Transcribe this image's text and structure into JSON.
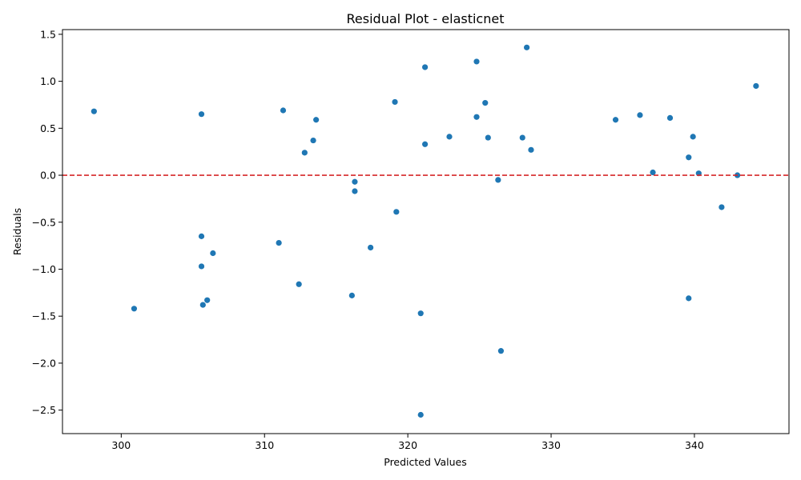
{
  "chart_data": {
    "type": "scatter",
    "title": "Residual Plot - elasticnet",
    "xlabel": "Predicted Values",
    "ylabel": "Residuals",
    "xlim": [
      295.9,
      346.6
    ],
    "ylim": [
      -2.75,
      1.55
    ],
    "xticks": [
      300,
      310,
      320,
      330,
      340
    ],
    "xtick_labels": [
      "300",
      "310",
      "320",
      "330",
      "340"
    ],
    "yticks": [
      1.5,
      1.0,
      0.5,
      0.0,
      -0.5,
      -1.0,
      -1.5,
      -2.0,
      -2.5
    ],
    "ytick_labels": [
      "1.5",
      "1.0",
      "0.5",
      "0.0",
      "−0.5",
      "−1.0",
      "−1.5",
      "−2.0",
      "−2.5"
    ],
    "reference_line": {
      "y": 0,
      "style": "dashed",
      "color": "#d62728"
    },
    "marker_color": "#1f77b4",
    "grid": false,
    "points": [
      {
        "x": 298.1,
        "y": 0.68
      },
      {
        "x": 300.9,
        "y": -1.42
      },
      {
        "x": 305.6,
        "y": 0.65
      },
      {
        "x": 305.6,
        "y": -0.65
      },
      {
        "x": 305.6,
        "y": -0.97
      },
      {
        "x": 305.7,
        "y": -1.38
      },
      {
        "x": 306.0,
        "y": -1.33
      },
      {
        "x": 306.4,
        "y": -0.83
      },
      {
        "x": 311.0,
        "y": -0.72
      },
      {
        "x": 311.3,
        "y": 0.69
      },
      {
        "x": 312.4,
        "y": -1.16
      },
      {
        "x": 312.8,
        "y": 0.24
      },
      {
        "x": 313.4,
        "y": 0.37
      },
      {
        "x": 313.6,
        "y": 0.59
      },
      {
        "x": 316.1,
        "y": -1.28
      },
      {
        "x": 316.3,
        "y": -0.07
      },
      {
        "x": 316.3,
        "y": -0.17
      },
      {
        "x": 317.4,
        "y": -0.77
      },
      {
        "x": 319.1,
        "y": 0.78
      },
      {
        "x": 319.2,
        "y": -0.39
      },
      {
        "x": 320.9,
        "y": -1.47
      },
      {
        "x": 320.9,
        "y": -2.55
      },
      {
        "x": 321.2,
        "y": 1.15
      },
      {
        "x": 321.2,
        "y": 0.33
      },
      {
        "x": 322.9,
        "y": 0.41
      },
      {
        "x": 324.8,
        "y": 1.21
      },
      {
        "x": 324.8,
        "y": 0.62
      },
      {
        "x": 325.4,
        "y": 0.77
      },
      {
        "x": 325.6,
        "y": 0.4
      },
      {
        "x": 326.3,
        "y": -0.05
      },
      {
        "x": 326.5,
        "y": -1.87
      },
      {
        "x": 328.0,
        "y": 0.4
      },
      {
        "x": 328.3,
        "y": 1.36
      },
      {
        "x": 328.6,
        "y": 0.27
      },
      {
        "x": 334.5,
        "y": 0.59
      },
      {
        "x": 336.2,
        "y": 0.64
      },
      {
        "x": 337.1,
        "y": 0.03
      },
      {
        "x": 338.3,
        "y": 0.61
      },
      {
        "x": 339.6,
        "y": 0.19
      },
      {
        "x": 339.6,
        "y": -1.31
      },
      {
        "x": 339.9,
        "y": 0.41
      },
      {
        "x": 340.3,
        "y": 0.02
      },
      {
        "x": 341.9,
        "y": -0.34
      },
      {
        "x": 343.0,
        "y": 0.0
      },
      {
        "x": 344.3,
        "y": 0.95
      }
    ]
  }
}
